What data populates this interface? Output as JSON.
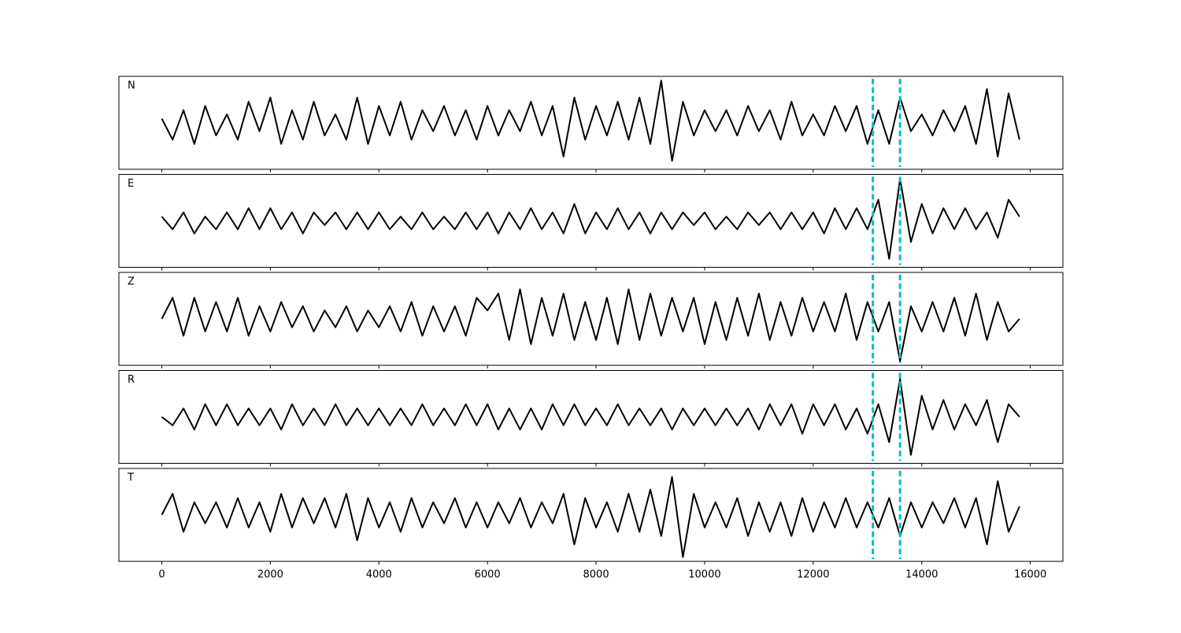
{
  "chart_data": {
    "type": "line",
    "x": [
      0,
      200,
      400,
      600,
      800,
      1000,
      1200,
      1400,
      1600,
      1800,
      2000,
      2200,
      2400,
      2600,
      2800,
      3000,
      3200,
      3400,
      3600,
      3800,
      4000,
      4200,
      4400,
      4600,
      4800,
      5000,
      5200,
      5400,
      5600,
      5800,
      6000,
      6200,
      6400,
      6600,
      6800,
      7000,
      7200,
      7400,
      7600,
      7800,
      8000,
      8200,
      8400,
      8600,
      8800,
      9000,
      9200,
      9400,
      9600,
      9800,
      10000,
      10200,
      10400,
      10600,
      10800,
      11000,
      11200,
      11400,
      11600,
      11800,
      12000,
      12200,
      12400,
      12600,
      12800,
      13000,
      13200,
      13400,
      13600,
      13800,
      14000,
      14200,
      14400,
      14600,
      14800,
      15000,
      15200,
      15400,
      15600,
      15800
    ],
    "series": [
      {
        "name": "N",
        "color": "#000000",
        "values": [
          0.1,
          -0.4,
          0.3,
          -0.5,
          0.4,
          -0.3,
          0.2,
          -0.4,
          0.5,
          -0.2,
          0.6,
          -0.5,
          0.3,
          -0.4,
          0.5,
          -0.3,
          0.2,
          -0.4,
          0.6,
          -0.5,
          0.4,
          -0.3,
          0.5,
          -0.4,
          0.3,
          -0.2,
          0.4,
          -0.3,
          0.3,
          -0.4,
          0.4,
          -0.3,
          0.3,
          -0.2,
          0.5,
          -0.3,
          0.4,
          -0.8,
          0.6,
          -0.4,
          0.4,
          -0.3,
          0.5,
          -0.4,
          0.6,
          -0.5,
          1.0,
          -0.9,
          0.5,
          -0.3,
          0.3,
          -0.2,
          0.3,
          -0.3,
          0.4,
          -0.2,
          0.3,
          -0.4,
          0.5,
          -0.3,
          0.2,
          -0.3,
          0.4,
          -0.2,
          0.4,
          -0.5,
          0.3,
          -0.5,
          0.6,
          -0.2,
          0.2,
          -0.3,
          0.3,
          -0.2,
          0.4,
          -0.5,
          0.8,
          -0.8,
          0.7,
          -0.4
        ]
      },
      {
        "name": "E",
        "color": "#000000",
        "values": [
          0.1,
          -0.2,
          0.2,
          -0.3,
          0.1,
          -0.2,
          0.2,
          -0.2,
          0.3,
          -0.2,
          0.3,
          -0.2,
          0.2,
          -0.3,
          0.2,
          -0.1,
          0.2,
          -0.2,
          0.2,
          -0.2,
          0.2,
          -0.2,
          0.1,
          -0.2,
          0.2,
          -0.2,
          0.1,
          -0.2,
          0.2,
          -0.2,
          0.2,
          -0.3,
          0.2,
          -0.2,
          0.3,
          -0.2,
          0.2,
          -0.3,
          0.4,
          -0.3,
          0.2,
          -0.2,
          0.3,
          -0.2,
          0.2,
          -0.3,
          0.2,
          -0.2,
          0.2,
          -0.1,
          0.2,
          -0.2,
          0.1,
          -0.2,
          0.2,
          -0.1,
          0.2,
          -0.2,
          0.2,
          -0.2,
          0.2,
          -0.3,
          0.3,
          -0.2,
          0.3,
          -0.2,
          0.5,
          -0.9,
          1.0,
          -0.5,
          0.4,
          -0.3,
          0.3,
          -0.2,
          0.3,
          -0.2,
          0.2,
          -0.4,
          0.5,
          0.1
        ]
      },
      {
        "name": "Z",
        "color": "#000000",
        "values": [
          0.0,
          0.5,
          -0.4,
          0.5,
          -0.3,
          0.4,
          -0.3,
          0.5,
          -0.4,
          0.3,
          -0.3,
          0.4,
          -0.2,
          0.3,
          -0.3,
          0.2,
          -0.2,
          0.3,
          -0.3,
          0.2,
          -0.2,
          0.3,
          -0.3,
          0.4,
          -0.4,
          0.3,
          -0.3,
          0.3,
          -0.4,
          0.5,
          0.2,
          0.6,
          -0.5,
          0.7,
          -0.6,
          0.5,
          -0.4,
          0.6,
          -0.5,
          0.4,
          -0.5,
          0.5,
          -0.6,
          0.7,
          -0.5,
          0.6,
          -0.4,
          0.5,
          -0.3,
          0.5,
          -0.6,
          0.4,
          -0.5,
          0.5,
          -0.4,
          0.6,
          -0.5,
          0.4,
          -0.4,
          0.5,
          -0.3,
          0.4,
          -0.3,
          0.6,
          -0.5,
          0.4,
          -0.3,
          0.4,
          -1.0,
          0.3,
          -0.3,
          0.4,
          -0.3,
          0.5,
          -0.4,
          0.6,
          -0.5,
          0.4,
          -0.3,
          0.0
        ]
      },
      {
        "name": "R",
        "color": "#000000",
        "values": [
          0.0,
          -0.2,
          0.2,
          -0.3,
          0.3,
          -0.2,
          0.3,
          -0.2,
          0.2,
          -0.2,
          0.2,
          -0.3,
          0.3,
          -0.2,
          0.2,
          -0.2,
          0.3,
          -0.2,
          0.2,
          -0.2,
          0.2,
          -0.2,
          0.2,
          -0.2,
          0.3,
          -0.2,
          0.2,
          -0.2,
          0.3,
          -0.2,
          0.3,
          -0.3,
          0.2,
          -0.3,
          0.2,
          -0.3,
          0.3,
          -0.2,
          0.3,
          -0.2,
          0.2,
          -0.2,
          0.3,
          -0.2,
          0.2,
          -0.2,
          0.2,
          -0.3,
          0.2,
          -0.2,
          0.2,
          -0.2,
          0.2,
          -0.2,
          0.2,
          -0.3,
          0.3,
          -0.2,
          0.3,
          -0.4,
          0.3,
          -0.2,
          0.3,
          -0.3,
          0.2,
          -0.4,
          0.3,
          -0.6,
          0.9,
          -0.9,
          0.5,
          -0.3,
          0.4,
          -0.3,
          0.3,
          -0.2,
          0.4,
          -0.6,
          0.3,
          0.0
        ]
      },
      {
        "name": "T",
        "color": "#000000",
        "values": [
          0.0,
          0.5,
          -0.4,
          0.3,
          -0.2,
          0.3,
          -0.3,
          0.4,
          -0.3,
          0.3,
          -0.4,
          0.5,
          -0.3,
          0.4,
          -0.2,
          0.4,
          -0.3,
          0.5,
          -0.6,
          0.4,
          -0.3,
          0.3,
          -0.4,
          0.4,
          -0.3,
          0.3,
          -0.2,
          0.4,
          -0.3,
          0.3,
          -0.3,
          0.3,
          -0.2,
          0.4,
          -0.3,
          0.3,
          -0.2,
          0.5,
          -0.7,
          0.4,
          -0.3,
          0.3,
          -0.4,
          0.5,
          -0.4,
          0.6,
          -0.5,
          0.9,
          -1.0,
          0.5,
          -0.3,
          0.3,
          -0.3,
          0.4,
          -0.5,
          0.3,
          -0.4,
          0.3,
          -0.5,
          0.4,
          -0.4,
          0.3,
          -0.3,
          0.4,
          -0.3,
          0.3,
          -0.3,
          0.4,
          -0.5,
          0.3,
          -0.3,
          0.3,
          -0.2,
          0.4,
          -0.3,
          0.4,
          -0.7,
          0.8,
          -0.4,
          0.2
        ]
      }
    ],
    "xlim": [
      -790,
      16600
    ],
    "xticks": [
      0,
      2000,
      4000,
      6000,
      8000,
      10000,
      12000,
      14000,
      16000
    ],
    "ylim": [
      -1.1,
      1.1
    ],
    "vlines": [
      13100,
      13600
    ],
    "vline_color": "#00bfbf"
  }
}
